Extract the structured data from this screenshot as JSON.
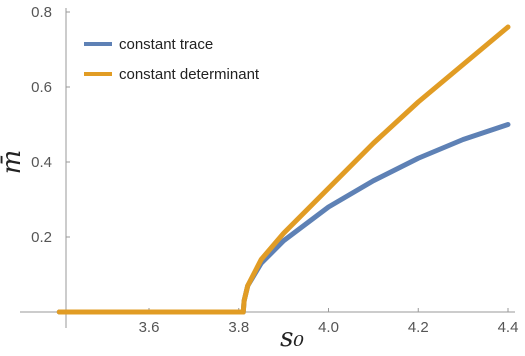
{
  "chart_data": {
    "type": "line",
    "title": "",
    "xlabel": "s₀",
    "ylabel": "m̄",
    "xlim": [
      3.4,
      4.41
    ],
    "ylim": [
      -0.05,
      0.8
    ],
    "x_ticks": [
      3.6,
      3.8,
      4.0,
      4.2,
      4.4
    ],
    "x_tick_labels": [
      "3.6",
      "3.8",
      "4.0",
      "4.2",
      "4.4"
    ],
    "y_ticks": [
      0.2,
      0.4,
      0.6,
      0.8
    ],
    "y_tick_labels": [
      "0.2",
      "0.4",
      "0.6",
      "0.8"
    ],
    "grid": false,
    "legend_position": "top-left",
    "series": [
      {
        "name": "constant trace",
        "color": "#5e81b5",
        "x": [
          3.4,
          3.6,
          3.81,
          3.812,
          3.82,
          3.85,
          3.9,
          4.0,
          4.1,
          4.2,
          4.3,
          4.4
        ],
        "y": [
          0,
          0,
          0,
          0.03,
          0.07,
          0.13,
          0.19,
          0.28,
          0.35,
          0.41,
          0.46,
          0.5
        ]
      },
      {
        "name": "constant determinant",
        "color": "#e19c24",
        "x": [
          3.4,
          3.6,
          3.81,
          3.812,
          3.82,
          3.85,
          3.9,
          4.0,
          4.1,
          4.2,
          4.3,
          4.4
        ],
        "y": [
          0,
          0,
          0,
          0.03,
          0.07,
          0.14,
          0.21,
          0.33,
          0.45,
          0.56,
          0.66,
          0.76
        ]
      }
    ]
  }
}
